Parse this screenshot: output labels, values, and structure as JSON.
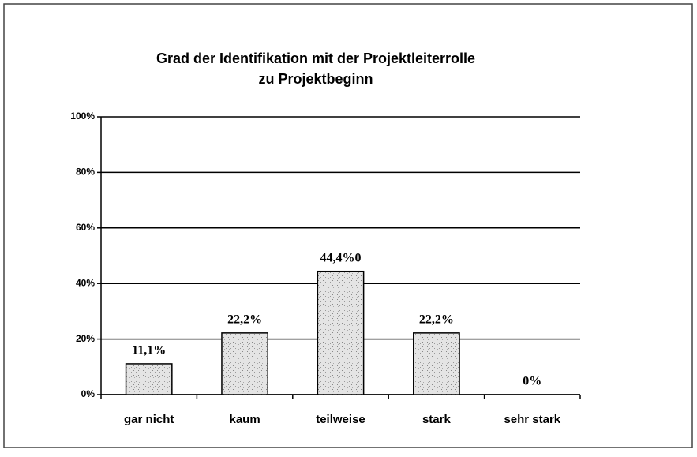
{
  "chart_data": {
    "type": "bar",
    "title": "Grad der Identifikation mit der Projektleiterrolle",
    "subtitle": "zu Projektbeginn",
    "categories": [
      "gar nicht",
      "kaum",
      "teilweise",
      "stark",
      "sehr stark"
    ],
    "values": [
      11.1,
      22.2,
      44.4,
      22.2,
      0
    ],
    "value_labels": [
      "11,1%",
      "22,2%",
      "44,4%0",
      "22,2%",
      "0%"
    ],
    "color": "#d9d9d9",
    "ylim": [
      0,
      100
    ],
    "yticks": [
      {
        "value": 0,
        "label": "0%"
      },
      {
        "value": 20,
        "label": "20%"
      },
      {
        "value": 40,
        "label": "40%"
      },
      {
        "value": 60,
        "label": "60%"
      },
      {
        "value": 80,
        "label": "80%"
      },
      {
        "value": 100,
        "label": "100%"
      }
    ],
    "grid": true
  }
}
